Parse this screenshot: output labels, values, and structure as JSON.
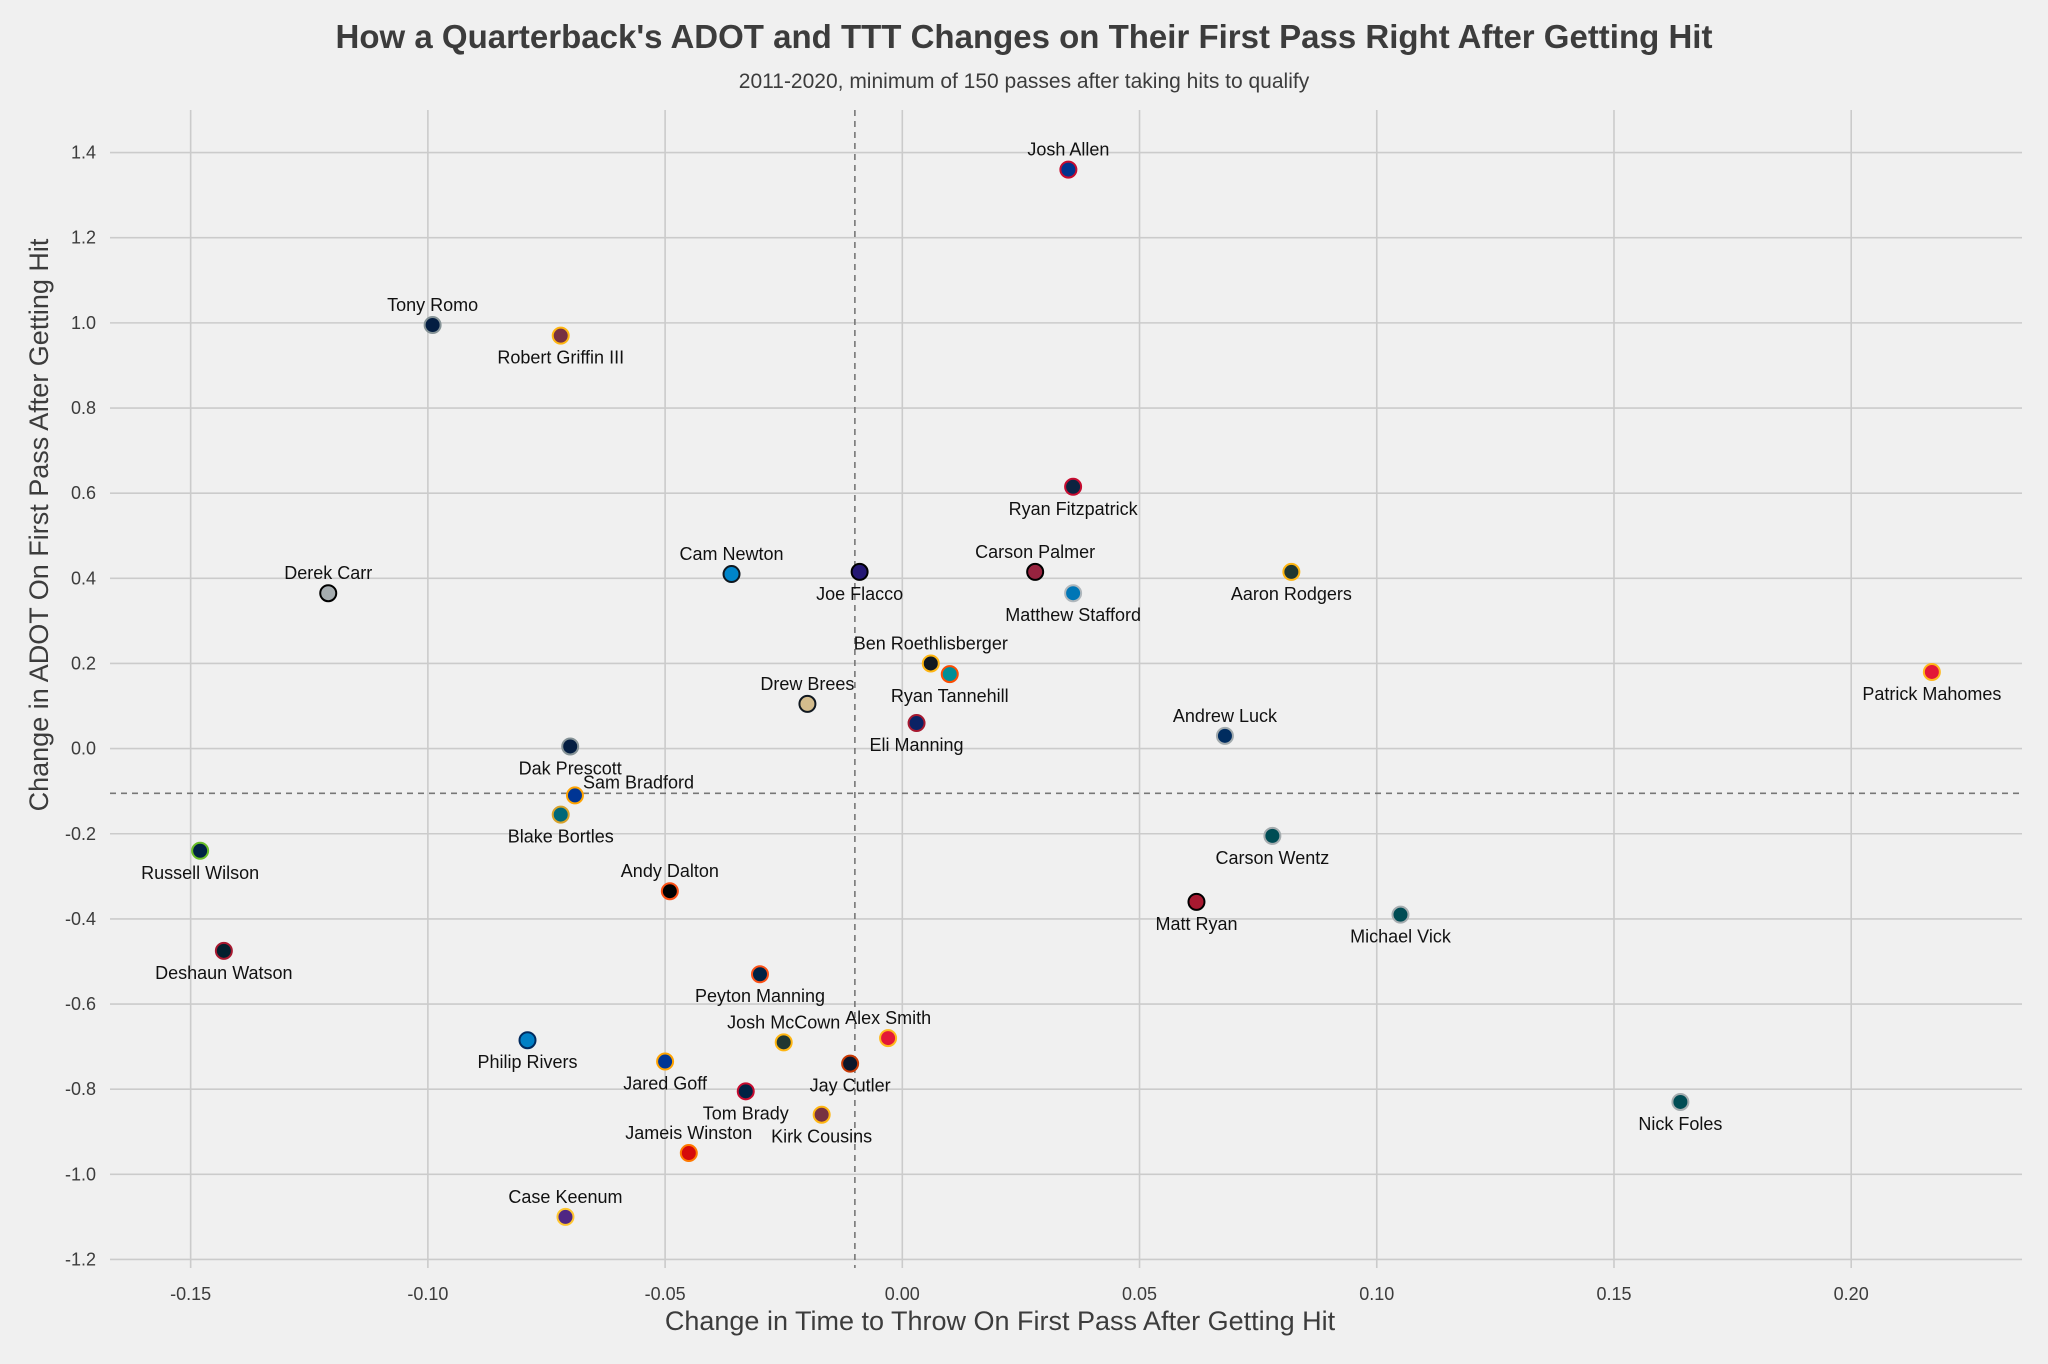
{
  "chart_data": {
    "type": "scatter",
    "title": "How a Quarterback's ADOT and TTT Changes on Their First Pass Right After Getting Hit",
    "subtitle": "2011-2020, minimum of 150 passes after taking hits to qualify",
    "xlabel": "Change in Time to Throw On First Pass After Getting Hit",
    "ylabel": "Change in ADOT On First Pass After Getting Hit",
    "xlim": [
      -0.167,
      0.236
    ],
    "ylim": [
      -1.22,
      1.5
    ],
    "xticks": [
      -0.15,
      -0.1,
      -0.05,
      0.0,
      0.05,
      0.1,
      0.15,
      0.2
    ],
    "xtick_labels": [
      "-0.15",
      "-0.10",
      "-0.05",
      "0.00",
      "0.05",
      "0.10",
      "0.15",
      "0.20"
    ],
    "yticks": [
      -1.2,
      -1.0,
      -0.8,
      -0.6,
      -0.4,
      -0.2,
      0.0,
      0.2,
      0.4,
      0.6,
      0.8,
      1.0,
      1.2,
      1.4
    ],
    "ytick_labels": [
      "-1.2",
      "-1.0",
      "-0.8",
      "-0.6",
      "-0.4",
      "-0.2",
      "0.0",
      "0.2",
      "0.4",
      "0.6",
      "0.8",
      "1.0",
      "1.2",
      "1.4"
    ],
    "grid": true,
    "reference_lines": {
      "x": -0.01,
      "y": -0.105
    },
    "points": [
      {
        "name": "Josh Allen",
        "x": 0.035,
        "y": 1.36,
        "fill": "#00338D",
        "edge": "#C60C30",
        "label_pos": "above"
      },
      {
        "name": "Tony Romo",
        "x": -0.099,
        "y": 0.995,
        "fill": "#041E42",
        "edge": "#869397",
        "label_pos": "above"
      },
      {
        "name": "Robert Griffin III",
        "x": -0.072,
        "y": 0.97,
        "fill": "#773141",
        "edge": "#FFB612",
        "label_pos": "below"
      },
      {
        "name": "Ryan Fitzpatrick",
        "x": 0.036,
        "y": 0.615,
        "fill": "#0C2340",
        "edge": "#C60C30",
        "label_pos": "below"
      },
      {
        "name": "Derek Carr",
        "x": -0.121,
        "y": 0.365,
        "fill": "#A5ACAF",
        "edge": "#000000",
        "label_pos": "above"
      },
      {
        "name": "Cam Newton",
        "x": -0.036,
        "y": 0.41,
        "fill": "#0085CA",
        "edge": "#101820",
        "label_pos": "above"
      },
      {
        "name": "Joe Flacco",
        "x": -0.009,
        "y": 0.415,
        "fill": "#241773",
        "edge": "#000000",
        "label_pos": "below"
      },
      {
        "name": "Carson Palmer",
        "x": 0.028,
        "y": 0.415,
        "fill": "#97233F",
        "edge": "#000000",
        "label_pos": "above"
      },
      {
        "name": "Matthew Stafford",
        "x": 0.036,
        "y": 0.365,
        "fill": "#0076B6",
        "edge": "#B0B7BC",
        "label_pos": "below"
      },
      {
        "name": "Aaron Rodgers",
        "x": 0.082,
        "y": 0.415,
        "fill": "#203731",
        "edge": "#FFB612",
        "label_pos": "below"
      },
      {
        "name": "Ben Roethlisberger",
        "x": 0.006,
        "y": 0.2,
        "fill": "#101820",
        "edge": "#FFB612",
        "label_pos": "above"
      },
      {
        "name": "Ryan Tannehill",
        "x": 0.01,
        "y": 0.175,
        "fill": "#008E97",
        "edge": "#FC4C02",
        "label_pos": "below"
      },
      {
        "name": "Drew Brees",
        "x": -0.02,
        "y": 0.105,
        "fill": "#D3BC8D",
        "edge": "#101820",
        "label_pos": "above"
      },
      {
        "name": "Patrick Mahomes",
        "x": 0.217,
        "y": 0.18,
        "fill": "#E31837",
        "edge": "#FFB81C",
        "label_pos": "below"
      },
      {
        "name": "Eli Manning",
        "x": 0.003,
        "y": 0.06,
        "fill": "#0B2265",
        "edge": "#A71930",
        "label_pos": "below"
      },
      {
        "name": "Andrew Luck",
        "x": 0.068,
        "y": 0.03,
        "fill": "#002C5F",
        "edge": "#A2AAAD",
        "label_pos": "above"
      },
      {
        "name": "Dak Prescott",
        "x": -0.07,
        "y": 0.005,
        "fill": "#041E42",
        "edge": "#869397",
        "label_pos": "below"
      },
      {
        "name": "Sam Bradford",
        "x": -0.069,
        "y": -0.11,
        "fill": "#003594",
        "edge": "#FFA300",
        "label_pos": "above-right"
      },
      {
        "name": "Blake Bortles",
        "x": -0.072,
        "y": -0.155,
        "fill": "#006778",
        "edge": "#D7A22A",
        "label_pos": "below"
      },
      {
        "name": "Russell Wilson",
        "x": -0.148,
        "y": -0.24,
        "fill": "#002244",
        "edge": "#69BE28",
        "label_pos": "below"
      },
      {
        "name": "Carson Wentz",
        "x": 0.078,
        "y": -0.205,
        "fill": "#004C54",
        "edge": "#A5ACAF",
        "label_pos": "below"
      },
      {
        "name": "Andy Dalton",
        "x": -0.049,
        "y": -0.335,
        "fill": "#000000",
        "edge": "#FB4F14",
        "label_pos": "above"
      },
      {
        "name": "Matt Ryan",
        "x": 0.062,
        "y": -0.36,
        "fill": "#A71930",
        "edge": "#000000",
        "label_pos": "below"
      },
      {
        "name": "Michael Vick",
        "x": 0.105,
        "y": -0.39,
        "fill": "#004C54",
        "edge": "#A5ACAF",
        "label_pos": "below"
      },
      {
        "name": "Deshaun Watson",
        "x": -0.143,
        "y": -0.475,
        "fill": "#03202F",
        "edge": "#A71930",
        "label_pos": "below"
      },
      {
        "name": "Peyton Manning",
        "x": -0.03,
        "y": -0.53,
        "fill": "#002244",
        "edge": "#FB4F14",
        "label_pos": "below"
      },
      {
        "name": "Philip Rivers",
        "x": -0.079,
        "y": -0.685,
        "fill": "#0080C6",
        "edge": "#002A5E",
        "label_pos": "below"
      },
      {
        "name": "Josh McCown",
        "x": -0.025,
        "y": -0.69,
        "fill": "#203731",
        "edge": "#FFB612",
        "label_pos": "above"
      },
      {
        "name": "Alex Smith",
        "x": -0.003,
        "y": -0.68,
        "fill": "#E31837",
        "edge": "#FFB81C",
        "label_pos": "above"
      },
      {
        "name": "Jared Goff",
        "x": -0.05,
        "y": -0.735,
        "fill": "#003594",
        "edge": "#FFA300",
        "label_pos": "below"
      },
      {
        "name": "Jay Cutler",
        "x": -0.011,
        "y": -0.74,
        "fill": "#0B162A",
        "edge": "#C83803",
        "label_pos": "below"
      },
      {
        "name": "Tom Brady",
        "x": -0.033,
        "y": -0.805,
        "fill": "#002244",
        "edge": "#C60C30",
        "label_pos": "below"
      },
      {
        "name": "Kirk Cousins",
        "x": -0.017,
        "y": -0.86,
        "fill": "#773141",
        "edge": "#FFB612",
        "label_pos": "below"
      },
      {
        "name": "Nick Foles",
        "x": 0.164,
        "y": -0.83,
        "fill": "#004C54",
        "edge": "#A5ACAF",
        "label_pos": "below"
      },
      {
        "name": "Jameis Winston",
        "x": -0.045,
        "y": -0.95,
        "fill": "#D50A0A",
        "edge": "#FF7900",
        "label_pos": "above"
      },
      {
        "name": "Case Keenum",
        "x": -0.071,
        "y": -1.1,
        "fill": "#4F2683",
        "edge": "#FFC62F",
        "label_pos": "above"
      }
    ]
  }
}
